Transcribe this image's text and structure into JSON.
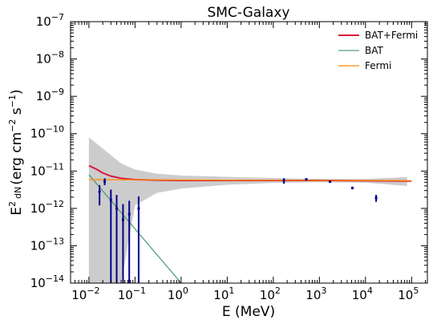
{
  "chart_data": {
    "type": "line",
    "title": "SMC-Galaxy",
    "xlabel": "E (MeV)",
    "ylabel": "E² dN/dE (erg cm⁻² s⁻¹)",
    "xscale": "log",
    "yscale": "log",
    "xlim": [
      0.004,
      220000
    ],
    "ylim": [
      1e-14,
      1e-07
    ],
    "x_ticks": [
      {
        "value": 0.01,
        "label": "10",
        "exp": "−2"
      },
      {
        "value": 0.1,
        "label": "10",
        "exp": "−1"
      },
      {
        "value": 1,
        "label": "10",
        "exp": "0"
      },
      {
        "value": 10,
        "label": "10",
        "exp": "1"
      },
      {
        "value": 100,
        "label": "10",
        "exp": "2"
      },
      {
        "value": 1000,
        "label": "10",
        "exp": "3"
      },
      {
        "value": 10000,
        "label": "10",
        "exp": "4"
      },
      {
        "value": 100000,
        "label": "10",
        "exp": "5"
      }
    ],
    "y_ticks": [
      {
        "value": 1e-14,
        "label": "10",
        "exp": "−14"
      },
      {
        "value": 1e-13,
        "label": "10",
        "exp": "−13"
      },
      {
        "value": 1e-12,
        "label": "10",
        "exp": "−12"
      },
      {
        "value": 1e-11,
        "label": "10",
        "exp": "−11"
      },
      {
        "value": 1e-10,
        "label": "10",
        "exp": "−10"
      },
      {
        "value": 1e-09,
        "label": "10",
        "exp": "−9"
      },
      {
        "value": 1e-08,
        "label": "10",
        "exp": "−8"
      },
      {
        "value": 1e-07,
        "label": "10",
        "exp": "−7"
      }
    ],
    "legend_position": "top-right",
    "series": [
      {
        "name": "BAT+Fermi",
        "color": "#dc143c",
        "x": [
          0.01,
          0.015,
          0.02,
          0.03,
          0.05,
          0.1,
          0.3,
          1,
          10,
          100,
          1000,
          10000,
          100000
        ],
        "y": [
          1.4e-11,
          1.1e-11,
          8.9e-12,
          7.3e-12,
          6.4e-12,
          5.9e-12,
          5.7e-12,
          5.6e-12,
          5.6e-12,
          5.6e-12,
          5.6e-12,
          5.5e-12,
          5.4e-12
        ]
      },
      {
        "name": "BAT",
        "color": "#2e8b57",
        "x": [
          0.01,
          1
        ],
        "y": [
          8e-12,
          1e-14
        ]
      },
      {
        "name": "Fermi",
        "color": "#ff8c00",
        "x": [
          0.01,
          100000
        ],
        "y": [
          5.9e-12,
          5.5e-12
        ]
      }
    ],
    "uncertainty_band": {
      "color": "#cccccc",
      "x": [
        0.01,
        0.02,
        0.05,
        0.1,
        0.3,
        1,
        10,
        100,
        1000,
        10000,
        80000
      ],
      "upper": [
        8e-11,
        4e-11,
        1.6e-11,
        1.1e-11,
        8.5e-12,
        7.6e-12,
        7e-12,
        6.5e-12,
        6.1e-12,
        6.1e-12,
        6.9e-12
      ],
      "lower": [
        1e-14,
        1e-14,
        1e-14,
        1.2e-12,
        2.6e-12,
        3.4e-12,
        4.3e-12,
        4.8e-12,
        5e-12,
        4.9e-12,
        4e-12
      ]
    },
    "data_points": {
      "color": "#00008b",
      "points": [
        {
          "x": 0.017,
          "y": 2.8e-12,
          "lo": 1.2e-12,
          "hi": 4.2e-12
        },
        {
          "x": 0.022,
          "y": 5.2e-12,
          "lo": 4.2e-12,
          "hi": 6.4e-12
        },
        {
          "x": 0.03,
          "y": 1.7e-12,
          "lo": 1e-14,
          "hi": 3.2e-12
        },
        {
          "x": 0.04,
          "y": 1e-12,
          "lo": 1e-14,
          "hi": 2.3e-12
        },
        {
          "x": 0.055,
          "y": 5e-13,
          "lo": 1e-14,
          "hi": 1.3e-12
        },
        {
          "x": 0.075,
          "y": 7e-13,
          "lo": 1e-14,
          "hi": 1.6e-12
        },
        {
          "x": 0.12,
          "y": 1e-12,
          "lo": 1e-14,
          "hi": 2.1e-12
        },
        {
          "x": 170,
          "y": 5.6e-12,
          "lo": 4.6e-12,
          "hi": 6.4e-12
        },
        {
          "x": 520,
          "y": 6e-12,
          "lo": 5.6e-12,
          "hi": 6.4e-12
        },
        {
          "x": 1700,
          "y": 5.2e-12,
          "lo": 4.9e-12,
          "hi": 5.5e-12
        },
        {
          "x": 5200,
          "y": 3.5e-12,
          "lo": 3.3e-12,
          "hi": 3.8e-12
        },
        {
          "x": 17000,
          "y": 1.9e-12,
          "lo": 1.5e-12,
          "hi": 2.3e-12
        }
      ]
    }
  }
}
